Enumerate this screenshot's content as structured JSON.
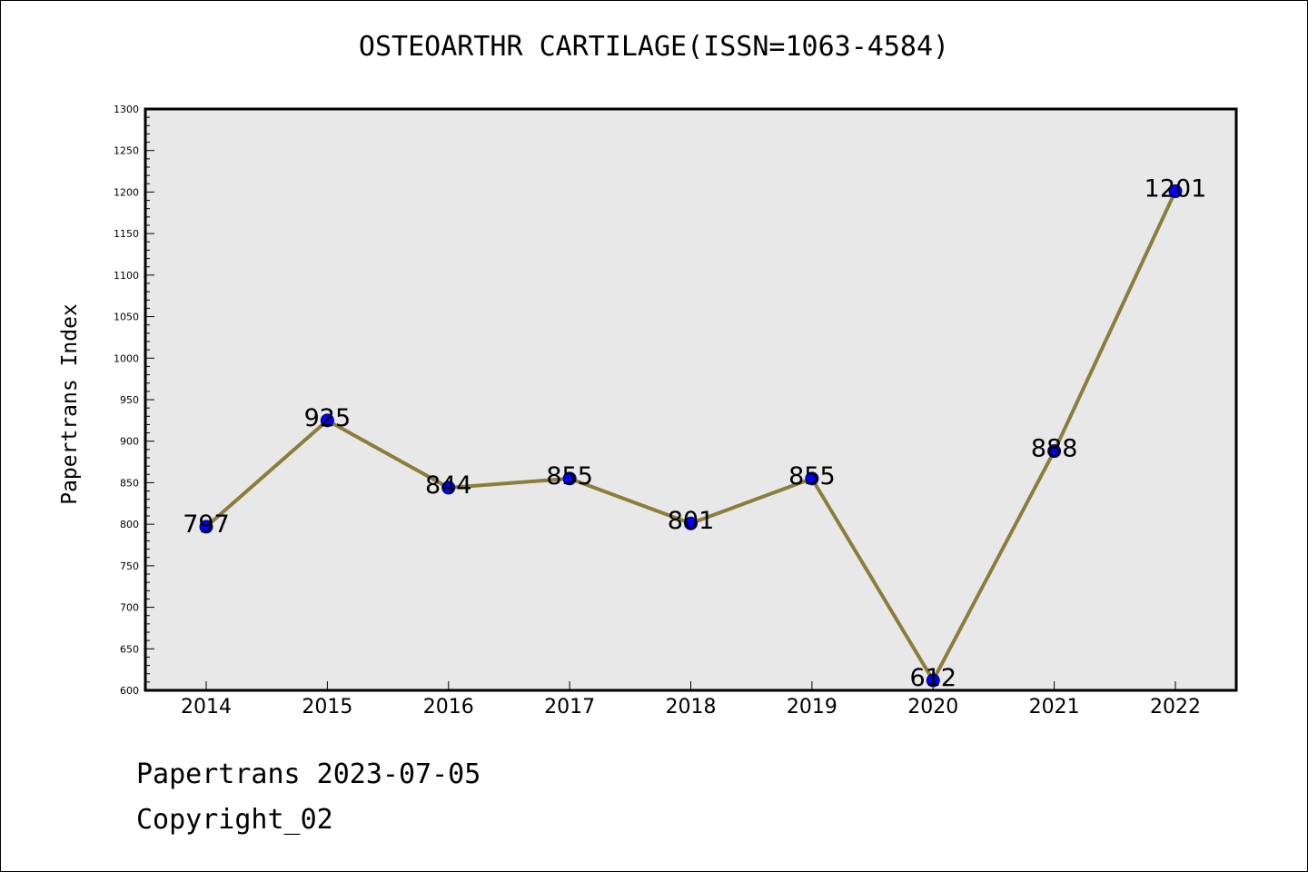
{
  "chart_data": {
    "type": "line",
    "title": "OSTEOARTHR CARTILAGE(ISSN=1063-4584)",
    "xlabel": "",
    "ylabel": "Papertrans Index",
    "categories": [
      "2014",
      "2015",
      "2016",
      "2017",
      "2018",
      "2019",
      "2020",
      "2021",
      "2022"
    ],
    "series": [
      {
        "values": [
          797,
          925,
          844,
          855,
          801,
          855,
          612,
          888,
          1201
        ]
      }
    ],
    "data_labels": [
      "797",
      "925",
      "844",
      "855",
      "801",
      "855",
      "612",
      "888",
      "1201"
    ],
    "ylim": [
      600,
      1300
    ],
    "yticks": [
      "600",
      "650",
      "700",
      "750",
      "800",
      "850",
      "900",
      "950",
      "1000",
      "1050",
      "1100",
      "1150",
      "1200",
      "1250",
      "1300"
    ],
    "grid": false,
    "legend": "none",
    "colors": {
      "line": "#8b7d3a",
      "marker": "#0000ff",
      "plot_background": "#e8e8e8"
    }
  },
  "footer": {
    "line1": "Papertrans 2023-07-05",
    "line2": "Copyright_02"
  }
}
